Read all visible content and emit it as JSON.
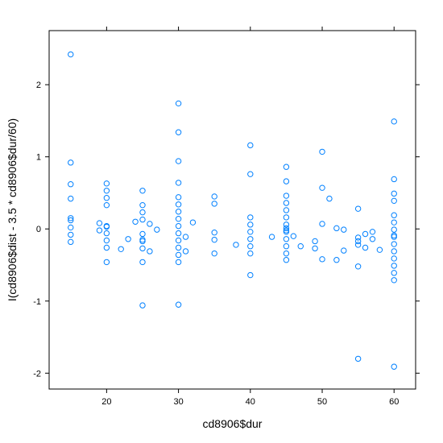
{
  "chart_data": {
    "type": "scatter",
    "title": "",
    "xlabel": "cd8906$dur",
    "ylabel": "I(cd8906$dist - 3.5 * cd8906$dur/60)",
    "xlim": [
      12,
      63
    ],
    "ylim": [
      -2.22,
      2.75
    ],
    "x_ticks": [
      20,
      30,
      40,
      50,
      60
    ],
    "y_ticks": [
      -2,
      -1,
      0,
      1,
      2
    ],
    "grid": false,
    "point_color": "#0080ff",
    "points": [
      {
        "x": 15,
        "y": 2.42
      },
      {
        "x": 15,
        "y": 0.92
      },
      {
        "x": 15,
        "y": 0.62
      },
      {
        "x": 15,
        "y": 0.42
      },
      {
        "x": 15,
        "y": 0.15
      },
      {
        "x": 15,
        "y": 0.12
      },
      {
        "x": 15,
        "y": 0.02
      },
      {
        "x": 15,
        "y": -0.08
      },
      {
        "x": 15,
        "y": -0.18
      },
      {
        "x": 19,
        "y": 0.08
      },
      {
        "x": 19,
        "y": -0.02
      },
      {
        "x": 20,
        "y": 0.63
      },
      {
        "x": 20,
        "y": 0.53
      },
      {
        "x": 20,
        "y": 0.43
      },
      {
        "x": 20,
        "y": 0.33
      },
      {
        "x": 20,
        "y": 0.04
      },
      {
        "x": 20,
        "y": 0.03
      },
      {
        "x": 20,
        "y": -0.06
      },
      {
        "x": 20,
        "y": -0.16
      },
      {
        "x": 20,
        "y": -0.26
      },
      {
        "x": 20,
        "y": -0.46
      },
      {
        "x": 22,
        "y": -0.28
      },
      {
        "x": 23,
        "y": -0.14
      },
      {
        "x": 24,
        "y": 0.1
      },
      {
        "x": 25,
        "y": 0.53
      },
      {
        "x": 25,
        "y": 0.33
      },
      {
        "x": 25,
        "y": 0.23
      },
      {
        "x": 25,
        "y": 0.13
      },
      {
        "x": 25,
        "y": -0.07
      },
      {
        "x": 25,
        "y": -0.15
      },
      {
        "x": 25,
        "y": -0.17
      },
      {
        "x": 25,
        "y": -0.27
      },
      {
        "x": 25,
        "y": -0.46
      },
      {
        "x": 25,
        "y": -1.06
      },
      {
        "x": 26,
        "y": 0.07
      },
      {
        "x": 26,
        "y": -0.31
      },
      {
        "x": 27,
        "y": -0.01
      },
      {
        "x": 30,
        "y": 1.74
      },
      {
        "x": 30,
        "y": 1.34
      },
      {
        "x": 30,
        "y": 0.94
      },
      {
        "x": 30,
        "y": 0.64
      },
      {
        "x": 30,
        "y": 0.44
      },
      {
        "x": 30,
        "y": 0.34
      },
      {
        "x": 30,
        "y": 0.24
      },
      {
        "x": 30,
        "y": 0.14
      },
      {
        "x": 30,
        "y": 0.04
      },
      {
        "x": 30,
        "y": -0.06
      },
      {
        "x": 30,
        "y": -0.16
      },
      {
        "x": 30,
        "y": -0.26
      },
      {
        "x": 30,
        "y": -0.36
      },
      {
        "x": 30,
        "y": -0.46
      },
      {
        "x": 30,
        "y": -1.05
      },
      {
        "x": 31,
        "y": -0.11
      },
      {
        "x": 31,
        "y": -0.31
      },
      {
        "x": 32,
        "y": 0.09
      },
      {
        "x": 35,
        "y": 0.45
      },
      {
        "x": 35,
        "y": 0.35
      },
      {
        "x": 35,
        "y": -0.05
      },
      {
        "x": 35,
        "y": -0.15
      },
      {
        "x": 35,
        "y": -0.34
      },
      {
        "x": 38,
        "y": -0.22
      },
      {
        "x": 40,
        "y": 1.16
      },
      {
        "x": 40,
        "y": 0.76
      },
      {
        "x": 40,
        "y": 0.16
      },
      {
        "x": 40,
        "y": 0.06
      },
      {
        "x": 40,
        "y": -0.04
      },
      {
        "x": 40,
        "y": -0.14
      },
      {
        "x": 40,
        "y": -0.24
      },
      {
        "x": 40,
        "y": -0.34
      },
      {
        "x": 40,
        "y": -0.64
      },
      {
        "x": 43,
        "y": -0.11
      },
      {
        "x": 45,
        "y": 0.86
      },
      {
        "x": 45,
        "y": 0.66
      },
      {
        "x": 45,
        "y": 0.46
      },
      {
        "x": 45,
        "y": 0.36
      },
      {
        "x": 45,
        "y": 0.26
      },
      {
        "x": 45,
        "y": 0.16
      },
      {
        "x": 45,
        "y": 0.06
      },
      {
        "x": 45,
        "y": 0.01
      },
      {
        "x": 45,
        "y": -0.02
      },
      {
        "x": 45,
        "y": -0.04
      },
      {
        "x": 45,
        "y": -0.14
      },
      {
        "x": 45,
        "y": -0.24
      },
      {
        "x": 45,
        "y": -0.34
      },
      {
        "x": 45,
        "y": -0.43
      },
      {
        "x": 46,
        "y": -0.1
      },
      {
        "x": 47,
        "y": -0.24
      },
      {
        "x": 49,
        "y": -0.17
      },
      {
        "x": 49,
        "y": -0.27
      },
      {
        "x": 50,
        "y": 1.07
      },
      {
        "x": 50,
        "y": 0.57
      },
      {
        "x": 50,
        "y": 0.07
      },
      {
        "x": 50,
        "y": -0.42
      },
      {
        "x": 51,
        "y": 0.42
      },
      {
        "x": 52,
        "y": 0.01
      },
      {
        "x": 52,
        "y": -0.43
      },
      {
        "x": 53,
        "y": -0.01
      },
      {
        "x": 53,
        "y": -0.3
      },
      {
        "x": 55,
        "y": 0.28
      },
      {
        "x": 55,
        "y": -0.12
      },
      {
        "x": 55,
        "y": -0.17
      },
      {
        "x": 55,
        "y": -0.22
      },
      {
        "x": 55,
        "y": -0.52
      },
      {
        "x": 55,
        "y": -1.8
      },
      {
        "x": 56,
        "y": -0.07
      },
      {
        "x": 56,
        "y": -0.26
      },
      {
        "x": 57,
        "y": -0.04
      },
      {
        "x": 57,
        "y": -0.14
      },
      {
        "x": 58,
        "y": -0.29
      },
      {
        "x": 60,
        "y": 1.49
      },
      {
        "x": 60,
        "y": 0.69
      },
      {
        "x": 60,
        "y": 0.49
      },
      {
        "x": 60,
        "y": 0.39
      },
      {
        "x": 60,
        "y": 0.19
      },
      {
        "x": 60,
        "y": 0.09
      },
      {
        "x": 60,
        "y": -0.01
      },
      {
        "x": 60,
        "y": -0.09
      },
      {
        "x": 60,
        "y": -0.11
      },
      {
        "x": 60,
        "y": -0.21
      },
      {
        "x": 60,
        "y": -0.31
      },
      {
        "x": 60,
        "y": -0.41
      },
      {
        "x": 60,
        "y": -0.51
      },
      {
        "x": 60,
        "y": -0.61
      },
      {
        "x": 60,
        "y": -0.71
      },
      {
        "x": 60,
        "y": -1.91
      }
    ]
  }
}
